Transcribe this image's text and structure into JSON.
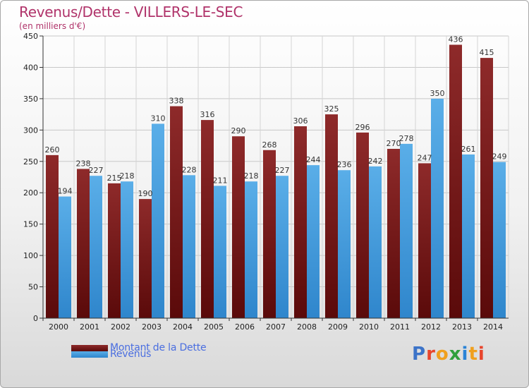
{
  "title": "Revenus/Dette - VILLERS-LE-SEC",
  "subtitle": "(en milliers d'€)",
  "logo": {
    "text": "Proxiti",
    "letter_colors": [
      "#3c73c8",
      "#e8452c",
      "#f0a01e",
      "#2f9f3b",
      "#2a83d6",
      "#f0a01e",
      "#e8452c"
    ]
  },
  "colors": {
    "dette": "#7a1d1d",
    "dette_light": "#8e2a2a",
    "revenus": "#3d97dc",
    "revenus_light": "#5aaee8"
  },
  "chart_data": {
    "type": "bar",
    "categories": [
      "2000",
      "2001",
      "2002",
      "2003",
      "2004",
      "2005",
      "2006",
      "2007",
      "2008",
      "2009",
      "2010",
      "2011",
      "2012",
      "2013",
      "2014"
    ],
    "series": [
      {
        "name": "Montant de la Dette",
        "values": [
          260,
          238,
          215,
          190,
          338,
          316,
          290,
          268,
          306,
          325,
          296,
          270,
          247,
          436,
          415
        ]
      },
      {
        "name": "Revenus",
        "values": [
          194,
          227,
          218,
          310,
          228,
          211,
          218,
          227,
          244,
          236,
          242,
          278,
          350,
          261,
          249
        ]
      }
    ],
    "ylim": [
      0,
      450
    ],
    "yticks": [
      0,
      50,
      100,
      150,
      200,
      250,
      300,
      350,
      400,
      450
    ],
    "grid": true,
    "legend_position": "bottom-left"
  }
}
